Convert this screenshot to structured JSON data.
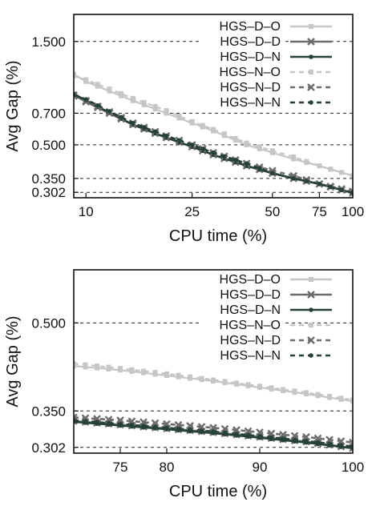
{
  "chart_data": [
    {
      "type": "line",
      "xlabel": "CPU time (%)",
      "ylabel": "Avg Gap (%)",
      "xscale": "log",
      "yscale": "log",
      "xlim": [
        9,
        100
      ],
      "ylim": [
        0.285,
        2.0
      ],
      "xticks": [
        10,
        25,
        50,
        75,
        100
      ],
      "yticks": [
        0.302,
        0.35,
        0.5,
        0.7,
        1.5
      ],
      "ytick_labels": [
        "0.302",
        "0.350",
        "0.500",
        "0.700",
        "1.500"
      ],
      "grid": "horizontal dashed",
      "legend_position": "top-right",
      "series": [
        {
          "name": "HGS–D–O",
          "color": "#c6c6c6",
          "dashed": false,
          "marker": "square",
          "x": [
            9,
            10,
            15,
            20,
            25,
            30,
            40,
            50,
            60,
            75,
            100
          ],
          "y": [
            1.06,
            0.98,
            0.8,
            0.7,
            0.63,
            0.58,
            0.5,
            0.46,
            0.43,
            0.4,
            0.36
          ]
        },
        {
          "name": "HGS–D–D",
          "color": "#6d6d6d",
          "dashed": false,
          "marker": "x",
          "x": [
            9,
            10,
            15,
            20,
            25,
            30,
            40,
            50,
            60,
            75,
            100
          ],
          "y": [
            0.85,
            0.79,
            0.62,
            0.54,
            0.49,
            0.45,
            0.4,
            0.37,
            0.35,
            0.33,
            0.3
          ]
        },
        {
          "name": "HGS–D–N",
          "color": "#26403a",
          "dashed": false,
          "marker": "dot",
          "x": [
            9,
            10,
            15,
            20,
            25,
            30,
            40,
            50,
            60,
            75,
            100
          ],
          "y": [
            0.86,
            0.8,
            0.62,
            0.54,
            0.49,
            0.45,
            0.4,
            0.37,
            0.35,
            0.33,
            0.3
          ]
        },
        {
          "name": "HGS–N–O",
          "color": "#c6c6c6",
          "dashed": true,
          "marker": "square",
          "x": [
            9,
            10,
            15,
            20,
            25,
            30,
            40,
            50,
            60,
            75,
            100
          ],
          "y": [
            1.04,
            1.0,
            0.82,
            0.72,
            0.64,
            0.59,
            0.51,
            0.47,
            0.44,
            0.4,
            0.36
          ]
        },
        {
          "name": "HGS–N–D",
          "color": "#6d6d6d",
          "dashed": true,
          "marker": "x",
          "x": [
            9,
            10,
            15,
            20,
            25,
            30,
            40,
            50,
            60,
            75,
            100
          ],
          "y": [
            0.84,
            0.8,
            0.63,
            0.55,
            0.5,
            0.46,
            0.41,
            0.38,
            0.36,
            0.33,
            0.305
          ]
        },
        {
          "name": "HGS–N–N",
          "color": "#26403a",
          "dashed": true,
          "marker": "dot",
          "x": [
            9,
            10,
            15,
            20,
            25,
            30,
            40,
            50,
            60,
            75,
            100
          ],
          "y": [
            0.85,
            0.81,
            0.63,
            0.55,
            0.5,
            0.46,
            0.41,
            0.37,
            0.35,
            0.33,
            0.3
          ]
        }
      ]
    },
    {
      "type": "line",
      "xlabel": "CPU time (%)",
      "ylabel": "Avg Gap (%)",
      "xscale": "linear",
      "yscale": "log",
      "xlim": [
        70,
        100
      ],
      "ylim": [
        0.295,
        0.62
      ],
      "xticks": [
        75,
        80,
        90,
        100
      ],
      "yticks": [
        0.302,
        0.35,
        0.5
      ],
      "ytick_labels": [
        "0.302",
        "0.350",
        "0.500"
      ],
      "grid": "horizontal dashed",
      "legend_position": "top-right",
      "series": [
        {
          "name": "HGS–D–O",
          "color": "#c6c6c6",
          "dashed": false,
          "marker": "square",
          "x": [
            70,
            75,
            80,
            85,
            90,
            95,
            100
          ],
          "y": [
            0.42,
            0.413,
            0.404,
            0.395,
            0.385,
            0.375,
            0.364
          ]
        },
        {
          "name": "HGS–D–D",
          "color": "#6d6d6d",
          "dashed": false,
          "marker": "x",
          "x": [
            70,
            75,
            80,
            85,
            90,
            95,
            100
          ],
          "y": [
            0.336,
            0.331,
            0.326,
            0.321,
            0.315,
            0.309,
            0.301
          ]
        },
        {
          "name": "HGS–D–N",
          "color": "#26403a",
          "dashed": false,
          "marker": "dot",
          "x": [
            70,
            75,
            80,
            85,
            90,
            95,
            100
          ],
          "y": [
            0.335,
            0.33,
            0.325,
            0.32,
            0.314,
            0.308,
            0.301
          ]
        },
        {
          "name": "HGS–N–O",
          "color": "#c6c6c6",
          "dashed": true,
          "marker": "square",
          "x": [
            70,
            75,
            80,
            85,
            90,
            95,
            100
          ],
          "y": [
            0.424,
            0.416,
            0.407,
            0.397,
            0.387,
            0.377,
            0.366
          ]
        },
        {
          "name": "HGS–N–D",
          "color": "#6d6d6d",
          "dashed": true,
          "marker": "x",
          "x": [
            70,
            75,
            80,
            85,
            90,
            95,
            100
          ],
          "y": [
            0.341,
            0.337,
            0.332,
            0.327,
            0.321,
            0.315,
            0.308
          ]
        },
        {
          "name": "HGS–N–N",
          "color": "#26403a",
          "dashed": true,
          "marker": "dot",
          "x": [
            70,
            75,
            80,
            85,
            90,
            95,
            100
          ],
          "y": [
            0.337,
            0.332,
            0.327,
            0.322,
            0.316,
            0.31,
            0.303
          ]
        }
      ]
    }
  ]
}
